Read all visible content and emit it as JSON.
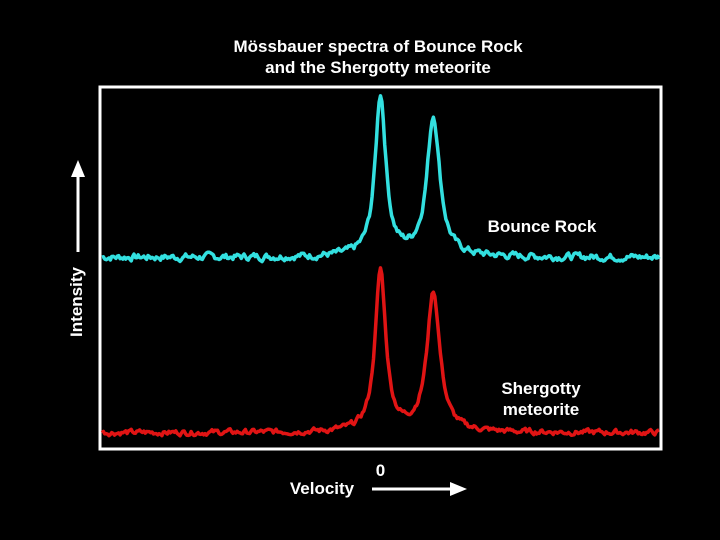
{
  "chart_data": {
    "type": "line",
    "title_line1": "Mössbauer spectra of Bounce Rock",
    "title_line2": "and the Shergotty meteorite",
    "xlabel": "Velocity",
    "ylabel": "Intensity",
    "xlim": [
      -100,
      100
    ],
    "ylim": [
      0,
      100
    ],
    "x_ticks": [
      {
        "value": 0,
        "label": "0"
      }
    ],
    "grid": false,
    "legend": "labels beside curves",
    "series": [
      {
        "name": "Bounce Rock",
        "color": "#33e0e0",
        "baseline": 53,
        "noise": 0.9,
        "peaks": [
          {
            "x": 0,
            "height": 45,
            "width": 2.3
          },
          {
            "x": 19,
            "height": 39,
            "width": 2.8
          }
        ]
      },
      {
        "name": "Shergotty meteorite",
        "label_line1": "Shergotty",
        "label_line2": "meteorite",
        "color": "#e01414",
        "baseline": 4,
        "noise": 0.7,
        "peaks": [
          {
            "x": 0,
            "height": 45,
            "width": 2.3
          },
          {
            "x": 19,
            "height": 39,
            "width": 2.8
          }
        ]
      }
    ]
  }
}
